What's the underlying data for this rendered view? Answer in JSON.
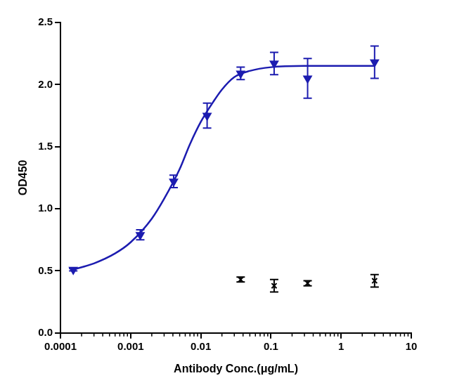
{
  "chart_data": {
    "type": "scatter",
    "x_label": "Antibody Conc.(μg/mL)",
    "y_label": "OD450",
    "log": "x",
    "grid": false,
    "xlim": [
      0.0001,
      10
    ],
    "xticks": [
      0.0001,
      0.001,
      0.01,
      0.1,
      1,
      10
    ],
    "ylim": [
      0,
      2.5
    ],
    "yticks": [
      {
        "value": 0,
        "label": "0.0"
      },
      {
        "value": 0.5,
        "label": "0.5"
      },
      {
        "value": 1,
        "label": "1.0"
      },
      {
        "value": 1.5,
        "label": "1.5"
      },
      {
        "value": 2,
        "label": "2.0"
      },
      {
        "value": 2.5,
        "label": "2.5"
      }
    ],
    "series": [
      {
        "type": "scatter",
        "color": "#1c1cb0",
        "marker": "triangle_down",
        "x": [
          0.000152,
          0.00137,
          0.0041,
          0.0123,
          0.037,
          0.111,
          0.333,
          3
        ],
        "values": [
          0.51,
          0.79,
          1.22,
          1.75,
          2.09,
          2.17,
          2.05,
          2.18
        ],
        "errors": [
          0.01,
          0.04,
          0.05,
          0.1,
          0.05,
          0.09,
          0.16,
          0.13
        ]
      },
      {
        "type": "line",
        "color": "#1c1cb0",
        "marker": "none",
        "x": [
          0.00015,
          0.0003,
          0.0006,
          0.001,
          0.002,
          0.003,
          0.005,
          0.007,
          0.01,
          0.015,
          0.02,
          0.03,
          0.05,
          0.1,
          0.3,
          1,
          3
        ],
        "values": [
          0.51,
          0.56,
          0.64,
          0.73,
          0.92,
          1.08,
          1.32,
          1.52,
          1.7,
          1.86,
          1.96,
          2.06,
          2.11,
          2.14,
          2.15,
          2.15,
          2.15
        ]
      },
      {
        "type": "scatter",
        "color": "#000000",
        "marker": "x",
        "x": [
          0.037,
          0.111,
          0.333,
          3
        ],
        "values": [
          0.43,
          0.38,
          0.4,
          0.42
        ],
        "errors": [
          0.02,
          0.05,
          0.02,
          0.05
        ]
      }
    ]
  }
}
